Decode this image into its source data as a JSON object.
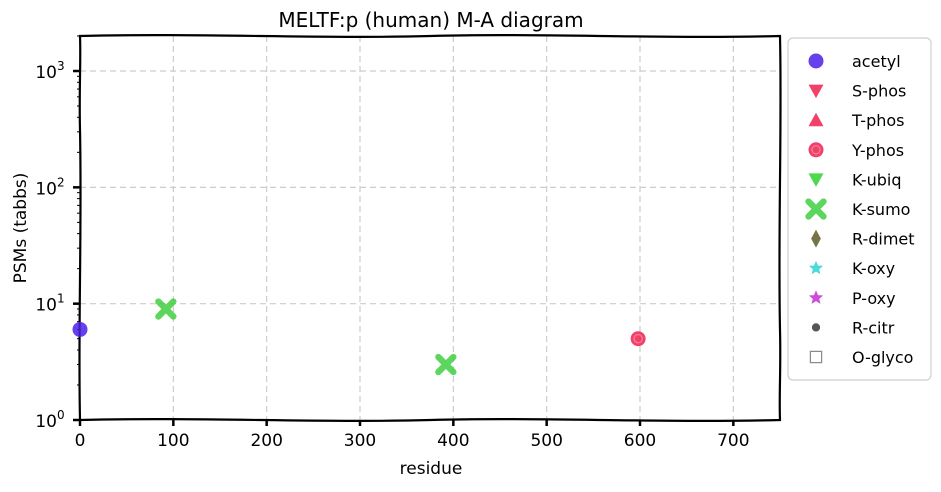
{
  "chart_data": {
    "type": "scatter",
    "title": "MELTF:p (human) M-A diagram",
    "xlabel": "residue",
    "ylabel": "PSMs (tabbs)",
    "xlim": [
      0,
      750
    ],
    "ylim": [
      1,
      2000
    ],
    "yscale": "log",
    "grid": true,
    "legend_position": "outside-right",
    "x_ticks": [
      "0",
      "100",
      "200",
      "300",
      "400",
      "500",
      "600",
      "700"
    ],
    "y_ticks": [
      {
        "base": "10",
        "exp": "0",
        "value": 1
      },
      {
        "base": "10",
        "exp": "1",
        "value": 10
      },
      {
        "base": "10",
        "exp": "2",
        "value": 100
      },
      {
        "base": "10",
        "exp": "3",
        "value": 1000
      }
    ],
    "series": [
      {
        "name": "acetyl",
        "marker": "circle",
        "color": "#4b1ee6",
        "points": [
          {
            "x": 0,
            "y": 6
          }
        ]
      },
      {
        "name": "S-phos",
        "marker": "triangle-down",
        "color": "#f0204f",
        "points": []
      },
      {
        "name": "T-phos",
        "marker": "triangle-up",
        "color": "#f0204f",
        "points": []
      },
      {
        "name": "Y-phos",
        "marker": "circle-ring",
        "color": "#f0204f",
        "points": [
          {
            "x": 598,
            "y": 5
          }
        ]
      },
      {
        "name": "K-ubiq",
        "marker": "triangle-down",
        "color": "#2fd12f",
        "points": []
      },
      {
        "name": "K-sumo",
        "marker": "x-filled",
        "color": "#3fcf3f",
        "points": [
          {
            "x": 92,
            "y": 9
          },
          {
            "x": 392,
            "y": 3
          }
        ]
      },
      {
        "name": "R-dimet",
        "marker": "diamond",
        "color": "#5f5a28",
        "points": []
      },
      {
        "name": "K-oxy",
        "marker": "star",
        "color": "#2ed4d4",
        "points": []
      },
      {
        "name": "P-oxy",
        "marker": "star",
        "color": "#c22ed4",
        "points": []
      },
      {
        "name": "R-citr",
        "marker": "dot",
        "color": "#555555",
        "points": []
      },
      {
        "name": "O-glyco",
        "marker": "square-open",
        "color": "#888888",
        "points": []
      }
    ]
  }
}
